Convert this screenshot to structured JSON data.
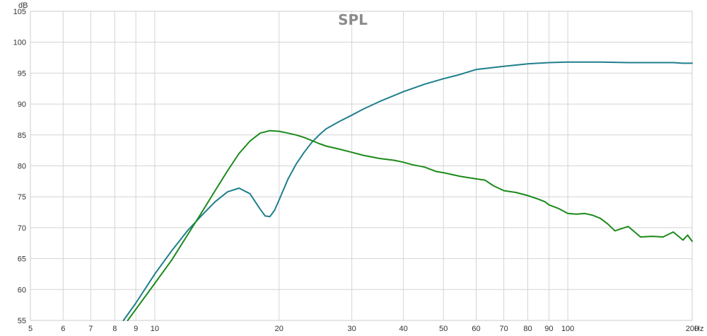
{
  "chart_data": {
    "type": "line",
    "title": "SPL",
    "ylabel": "dB",
    "xunit": "Hz",
    "xscale": "log",
    "xlim": [
      5,
      200
    ],
    "ylim": [
      55,
      105
    ],
    "grid": true,
    "x_ticks": [
      5,
      6,
      7,
      8,
      9,
      10,
      20,
      30,
      40,
      50,
      60,
      70,
      80,
      90,
      100,
      200
    ],
    "x_tick_labels": [
      "5",
      "6",
      "7",
      "8",
      "9",
      "10",
      "20",
      "30",
      "40",
      "50",
      "60",
      "70",
      "80",
      "90",
      "100",
      "200"
    ],
    "y_ticks": [
      55,
      60,
      65,
      70,
      75,
      80,
      85,
      90,
      95,
      100,
      105
    ],
    "y_tick_labels": [
      "55",
      "60",
      "65",
      "70",
      "75",
      "80",
      "85",
      "90",
      "95",
      "100",
      "105"
    ],
    "series": [
      {
        "color": "#1f7f8c",
        "x": [
          8.4,
          9,
          10,
          11,
          12,
          13,
          14,
          15,
          16,
          17,
          18,
          18.5,
          19,
          19.5,
          20,
          21,
          22,
          23,
          24,
          25,
          26,
          27,
          28,
          30,
          32,
          35,
          38,
          40,
          45,
          50,
          55,
          60,
          70,
          80,
          90,
          100,
          110,
          120,
          140,
          160,
          180,
          190,
          200
        ],
        "y": [
          55,
          57.8,
          62.5,
          66.3,
          69.5,
          72,
          74.2,
          75.8,
          76.4,
          75.5,
          73,
          71.9,
          71.8,
          72.8,
          74.5,
          77.8,
          80.3,
          82.2,
          83.8,
          85,
          86,
          86.6,
          87.2,
          88.2,
          89.2,
          90.4,
          91.4,
          92,
          93.2,
          94.1,
          94.8,
          95.6,
          96.1,
          96.5,
          96.7,
          96.8,
          96.8,
          96.8,
          96.7,
          96.7,
          96.7,
          96.6,
          96.6
        ]
      },
      {
        "color": "#1b8a1b",
        "x": [
          8.6,
          9,
          10,
          11,
          12,
          13,
          14,
          15,
          16,
          17,
          18,
          19,
          20,
          21,
          22,
          23,
          24,
          25,
          26,
          28,
          30,
          32,
          35,
          38,
          40,
          42,
          45,
          48,
          50,
          55,
          60,
          63,
          66,
          70,
          75,
          80,
          85,
          88,
          90,
          95,
          100,
          105,
          110,
          115,
          120,
          125,
          130,
          140,
          150,
          160,
          170,
          180,
          190,
          195,
          200
        ],
        "y": [
          55,
          56.8,
          61,
          64.8,
          68.8,
          72.5,
          76,
          79.2,
          82,
          84,
          85.3,
          85.7,
          85.6,
          85.3,
          85,
          84.6,
          84.1,
          83.6,
          83.2,
          82.7,
          82.2,
          81.7,
          81.2,
          80.9,
          80.6,
          80.2,
          79.8,
          79.1,
          78.9,
          78.3,
          77.9,
          77.7,
          76.8,
          76,
          75.7,
          75.2,
          74.6,
          74.2,
          73.7,
          73.1,
          72.3,
          72.2,
          72.3,
          72,
          71.5,
          70.6,
          69.5,
          70.2,
          68.5,
          68.6,
          68.5,
          69.3,
          68,
          68.8,
          67.8
        ]
      }
    ]
  }
}
